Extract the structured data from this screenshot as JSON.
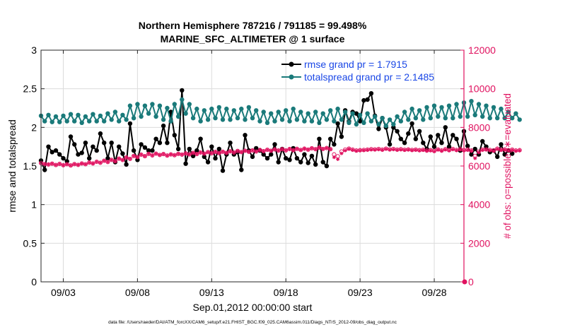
{
  "chart_data": {
    "type": "line",
    "title": "Northern Hemisphere 787216 / 791185 = 99.498%",
    "subtitle": "MARINE_SFC_ALTIMETER @ 1 surface",
    "xlabel": "Sep.01,2012 00:00:00 start",
    "ylabel_left": "rmse and totalspread",
    "ylabel_right": "# of obs: o=possible; ∗=evaluated",
    "footer": "data file: /Users/raeder/DAI/ATM_forcXX/CAM6_setup/f.e21.FHIST_BGC.f09_025.CAM6assim.011/Diags_NTrS_2012-09/obs_diag_output.nc",
    "xlim": [
      1.5,
      30.0
    ],
    "ylim_left": [
      0,
      3
    ],
    "ylim_right": [
      0,
      12000
    ],
    "grid": true,
    "legend_position": "top-right",
    "x_ticks": [
      {
        "value": 3,
        "label": "09/03"
      },
      {
        "value": 8,
        "label": "09/08"
      },
      {
        "value": 13,
        "label": "09/13"
      },
      {
        "value": 18,
        "label": "09/18"
      },
      {
        "value": 23,
        "label": "09/23"
      },
      {
        "value": 28,
        "label": "09/28"
      }
    ],
    "y_ticks_left": [
      {
        "value": 0,
        "label": "0"
      },
      {
        "value": 0.5,
        "label": "0.5"
      },
      {
        "value": 1,
        "label": "1"
      },
      {
        "value": 1.5,
        "label": "1.5"
      },
      {
        "value": 2,
        "label": "2"
      },
      {
        "value": 2.5,
        "label": "2.5"
      },
      {
        "value": 3,
        "label": "3"
      }
    ],
    "y_ticks_right": [
      {
        "value": 0,
        "label": "0"
      },
      {
        "value": 2000,
        "label": "2000"
      },
      {
        "value": 4000,
        "label": "4000"
      },
      {
        "value": 6000,
        "label": "6000"
      },
      {
        "value": 8000,
        "label": "8000"
      },
      {
        "value": 10000,
        "label": "10000"
      },
      {
        "value": 12000,
        "label": "12000"
      }
    ],
    "x_start": 1.5,
    "x_step": 0.25,
    "series": [
      {
        "name": "rmse grand pr = 1.7915",
        "axis": "left",
        "color": "#000000",
        "values": [
          1.57,
          1.45,
          1.75,
          1.68,
          1.7,
          1.65,
          1.6,
          1.56,
          1.88,
          1.78,
          1.65,
          1.67,
          1.8,
          1.6,
          1.75,
          1.7,
          1.92,
          1.8,
          1.6,
          1.8,
          1.55,
          1.75,
          1.66,
          1.52,
          2.05,
          1.7,
          1.58,
          1.78,
          1.74,
          1.7,
          1.7,
          1.85,
          1.8,
          2.02,
          1.8,
          2.2,
          1.9,
          1.72,
          2.48,
          1.53,
          1.72,
          1.63,
          1.7,
          1.85,
          1.62,
          1.55,
          1.75,
          1.6,
          1.72,
          1.44,
          1.65,
          1.8,
          1.65,
          1.68,
          1.45,
          1.9,
          1.7,
          1.62,
          1.73,
          1.7,
          1.65,
          1.6,
          1.65,
          1.78,
          1.55,
          1.72,
          1.6,
          1.58,
          1.73,
          1.6,
          1.55,
          1.65,
          1.54,
          1.63,
          1.52,
          1.85,
          1.55,
          1.5,
          1.85,
          1.78,
          2.05,
          1.88,
          2.22,
          2.08,
          2.2,
          2.18,
          2.08,
          2.35,
          2.36,
          2.44,
          2.15,
          1.98,
          2.12,
          2.0,
          1.78,
          2.0,
          1.95,
          1.85,
          1.8,
          1.92,
          2.05,
          1.85,
          1.95,
          1.8,
          1.72,
          1.88,
          1.75,
          1.9,
          1.8,
          2.0,
          1.75,
          1.9,
          1.85,
          1.7,
          1.95,
          1.76,
          1.65,
          1.72,
          1.65,
          1.82,
          1.75,
          1.68,
          1.7,
          1.62,
          1.78,
          1.65,
          1.7,
          1.66
        ]
      },
      {
        "name": "totalspread grand pr = 2.1485",
        "axis": "left",
        "color": "#1a7a7a",
        "values": [
          2.15,
          2.08,
          2.16,
          2.07,
          2.14,
          2.07,
          2.15,
          2.08,
          2.17,
          2.08,
          2.16,
          2.06,
          2.14,
          2.08,
          2.17,
          2.08,
          2.15,
          2.08,
          2.18,
          2.1,
          2.2,
          2.08,
          2.16,
          2.1,
          2.28,
          2.12,
          2.3,
          2.14,
          2.28,
          2.18,
          2.3,
          2.14,
          2.28,
          2.1,
          2.25,
          2.08,
          2.3,
          2.14,
          2.36,
          2.18,
          2.3,
          2.12,
          2.24,
          2.08,
          2.22,
          2.1,
          2.24,
          2.12,
          2.26,
          2.1,
          2.24,
          2.1,
          2.22,
          2.12,
          2.24,
          2.1,
          2.26,
          2.12,
          2.22,
          2.08,
          2.2,
          2.06,
          2.18,
          2.08,
          2.2,
          2.1,
          2.22,
          2.08,
          2.24,
          2.1,
          2.2,
          2.08,
          2.18,
          2.08,
          2.2,
          2.06,
          2.18,
          2.1,
          2.22,
          2.08,
          2.24,
          2.1,
          2.2,
          2.06,
          2.18,
          2.04,
          2.16,
          2.06,
          2.18,
          2.08,
          2.14,
          2.04,
          2.12,
          2.02,
          2.1,
          2.04,
          2.14,
          2.08,
          2.2,
          2.1,
          2.24,
          2.12,
          2.22,
          2.1,
          2.26,
          2.12,
          2.28,
          2.14,
          2.26,
          2.12,
          2.28,
          2.12,
          2.3,
          2.14,
          2.32,
          2.14,
          2.34,
          2.16,
          2.3,
          2.14,
          2.28,
          2.12,
          2.26,
          2.12,
          2.24,
          2.12,
          2.2,
          2.12,
          2.18,
          2.1
        ]
      },
      {
        "name": "possible",
        "axis": "right",
        "color": "#e0115f",
        "marker": "circle",
        "values": [
          6150,
          6100,
          6080,
          6120,
          6050,
          6110,
          6040,
          6090,
          6030,
          6100,
          6060,
          6130,
          6090,
          6180,
          6130,
          6220,
          6170,
          6270,
          6210,
          6320,
          6250,
          6380,
          6310,
          6440,
          6370,
          6520,
          6460,
          6590,
          6510,
          6630,
          6550,
          6640,
          6570,
          6620,
          6540,
          6600,
          6560,
          6630,
          6590,
          6650,
          6600,
          6680,
          6620,
          6700,
          6640,
          6720,
          6660,
          6730,
          6670,
          6740,
          6680,
          6760,
          6700,
          6780,
          6720,
          6790,
          6740,
          6810,
          6750,
          6830,
          6770,
          6840,
          6790,
          6860,
          6800,
          6870,
          6810,
          6880,
          6820,
          6890,
          6830,
          6900,
          6850,
          6920,
          6870,
          6950,
          6880,
          6930,
          6870,
          6600,
          6500,
          6750,
          6850,
          6900,
          6850,
          6800,
          6820,
          6830,
          6850,
          6870,
          6860,
          6880,
          6850,
          6900,
          6860,
          6880,
          6850,
          6870,
          6840,
          6860,
          6830,
          6850,
          6820,
          6840,
          6800,
          6820,
          6780,
          6860,
          6800,
          6870,
          6820,
          6880,
          6830,
          6870,
          6820,
          6850,
          6800,
          6520,
          6750,
          6850,
          6860,
          6830,
          6800,
          6900,
          6840,
          6860,
          6820,
          6850,
          6800,
          6820
        ]
      },
      {
        "name": "evaluated",
        "axis": "right",
        "color": "#e0115f",
        "marker": "asterisk",
        "values": [
          6150,
          6100,
          6080,
          6120,
          6050,
          6110,
          6040,
          6090,
          6030,
          6100,
          6060,
          6130,
          6090,
          6180,
          6130,
          6220,
          6170,
          6270,
          6210,
          6320,
          6250,
          6380,
          6310,
          6440,
          6370,
          6520,
          6460,
          6590,
          6510,
          6630,
          6550,
          6640,
          6570,
          6620,
          6540,
          6600,
          6560,
          6630,
          6590,
          6650,
          6600,
          6680,
          6620,
          6700,
          6640,
          6720,
          6660,
          6730,
          6670,
          6740,
          6680,
          6760,
          6700,
          6780,
          6720,
          6790,
          6740,
          6810,
          6750,
          6830,
          6770,
          6840,
          6790,
          6860,
          6800,
          6870,
          6810,
          6880,
          6820,
          6890,
          6830,
          6900,
          6850,
          6920,
          6870,
          6950,
          6880,
          6930,
          6870,
          6450,
          6350,
          6650,
          6800,
          6880,
          6830,
          6780,
          6800,
          6810,
          6830,
          6850,
          6840,
          6860,
          6830,
          6880,
          6840,
          6860,
          6830,
          6850,
          6820,
          6840,
          6810,
          6830,
          6800,
          6820,
          6780,
          6800,
          6760,
          6840,
          6780,
          6850,
          6800,
          6860,
          6810,
          6850,
          6800,
          6830,
          6780,
          6400,
          6700,
          6830,
          6840,
          6810,
          6780,
          6880,
          6820,
          6840,
          6800,
          6830,
          6780,
          6800
        ]
      }
    ],
    "right_axis_end_marker": {
      "x": 30.0,
      "value": 0
    }
  }
}
